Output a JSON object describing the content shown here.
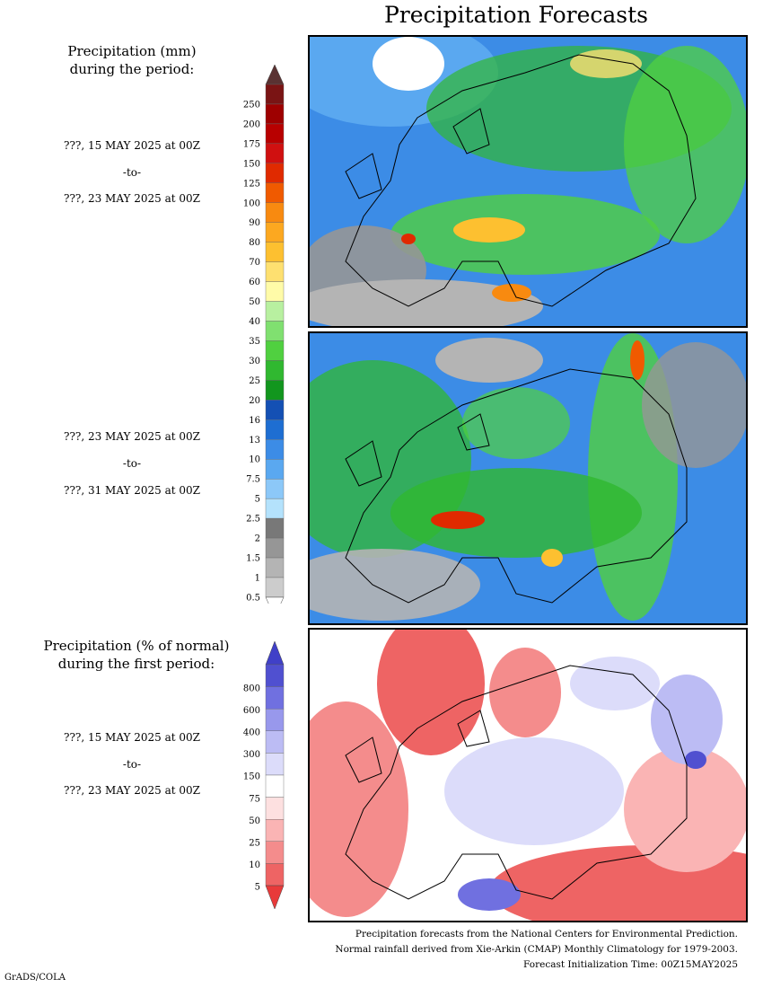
{
  "title": "Precipitation Forecasts",
  "panel1": {
    "caption_line1": "Precipitation (mm)",
    "caption_line2": "during the period:",
    "start": "???, 15 MAY 2025 at 00Z",
    "sep": "-to-",
    "end": "???, 23 MAY 2025 at 00Z"
  },
  "panel2": {
    "start": "???, 23 MAY 2025 at 00Z",
    "sep": "-to-",
    "end": "???, 31 MAY 2025 at 00Z"
  },
  "panel3": {
    "caption_line1": "Precipitation (% of normal)",
    "caption_line2": "during the first period:",
    "start": "???, 15 MAY 2025 at 00Z",
    "sep": "-to-",
    "end": "???, 23 MAY 2025 at 00Z"
  },
  "precip_scale": {
    "labels": [
      "250",
      "200",
      "175",
      "150",
      "125",
      "100",
      "90",
      "80",
      "70",
      "60",
      "50",
      "40",
      "35",
      "30",
      "25",
      "20",
      "16",
      "13",
      "10",
      "7.5",
      "5",
      "2.5",
      "2",
      "1.5",
      "1",
      "0.5"
    ],
    "colors": [
      "#7a1414",
      "#9e0000",
      "#b80000",
      "#d01010",
      "#e02a00",
      "#f05a00",
      "#f88a10",
      "#fca820",
      "#fdc030",
      "#fee070",
      "#fffba8",
      "#b8f0a0",
      "#80e070",
      "#50d040",
      "#30b830",
      "#12961e",
      "#1450b4",
      "#1e6ed2",
      "#3c8ce6",
      "#5aa8f0",
      "#8cc8f8",
      "#b4e2fc",
      "#787878",
      "#969696",
      "#b4b4b4",
      "#cccccc"
    ],
    "top_arrow_color": "#5a3232"
  },
  "anomaly_scale": {
    "labels": [
      "800",
      "600",
      "400",
      "300",
      "150",
      "75",
      "50",
      "25",
      "10",
      "5"
    ],
    "colors": [
      "#5050d0",
      "#7070e0",
      "#9898ec",
      "#bcbcf4",
      "#dcdcfa",
      "#ffffff",
      "#fde0e0",
      "#fab4b4",
      "#f48c8c",
      "#ee6464"
    ],
    "top_arrow_color": "#4040c8",
    "bottom_arrow_color": "#e83a3a"
  },
  "footer": {
    "line1": "Precipitation forecasts from the National Centers for Environmental Prediction.",
    "line2": "Normal rainfall derived from Xie-Arkin (CMAP) Monthly Climatology for 1979-2003.",
    "line3": "Forecast Initialization Time: 00Z15MAY2025"
  },
  "credit": "GrADS/COLA"
}
